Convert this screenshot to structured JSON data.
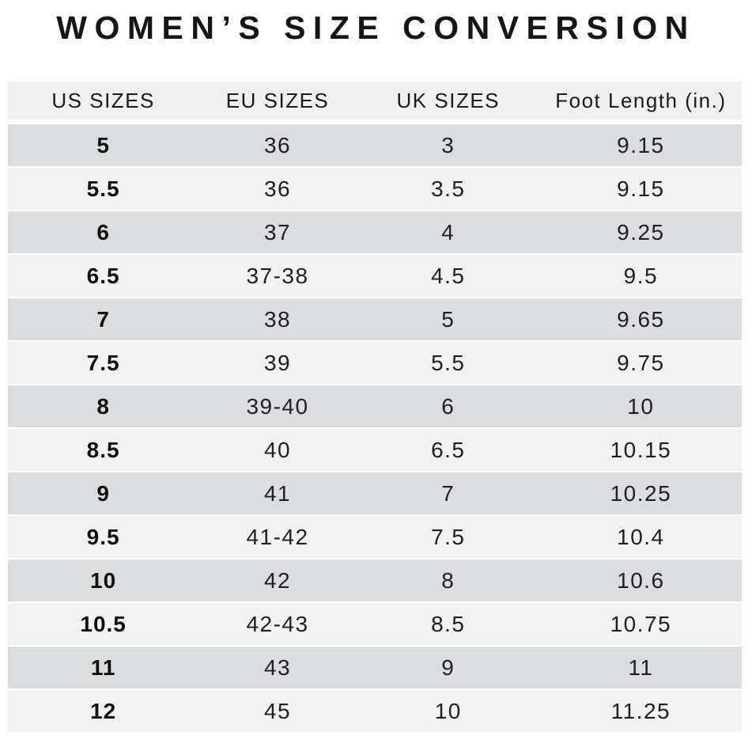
{
  "title": "WOMEN’S SIZE CONVERSION",
  "chart_data": {
    "type": "table",
    "title": "WOMEN’S SIZE CONVERSION",
    "columns": [
      "US SIZES",
      "EU SIZES",
      "UK SIZES",
      "Foot Length (in.)"
    ],
    "rows": [
      [
        "5",
        "36",
        "3",
        "9.15"
      ],
      [
        "5.5",
        "36",
        "3.5",
        "9.15"
      ],
      [
        "6",
        "37",
        "4",
        "9.25"
      ],
      [
        "6.5",
        "37-38",
        "4.5",
        "9.5"
      ],
      [
        "7",
        "38",
        "5",
        "9.65"
      ],
      [
        "7.5",
        "39",
        "5.5",
        "9.75"
      ],
      [
        "8",
        "39-40",
        "6",
        "10"
      ],
      [
        "8.5",
        "40",
        "6.5",
        "10.15"
      ],
      [
        "9",
        "41",
        "7",
        "10.25"
      ],
      [
        "9.5",
        "41-42",
        "7.5",
        "10.4"
      ],
      [
        "10",
        "42",
        "8",
        "10.6"
      ],
      [
        "10.5",
        "42-43",
        "8.5",
        "10.75"
      ],
      [
        "11",
        "43",
        "9",
        "11"
      ],
      [
        "12",
        "45",
        "10",
        "11.25"
      ]
    ],
    "layout": {
      "striped": true,
      "stripe_pattern": "first-data-row-dark",
      "first_column_bold": true,
      "grid": "off",
      "alignment": "center"
    }
  },
  "colors": {
    "background": "#ffffff",
    "header_bg": "#f0f0f0",
    "row_dark": "#dcddde",
    "row_light": "#f2f2f3",
    "title_text": "#161616",
    "cell_text": "#202022"
  }
}
